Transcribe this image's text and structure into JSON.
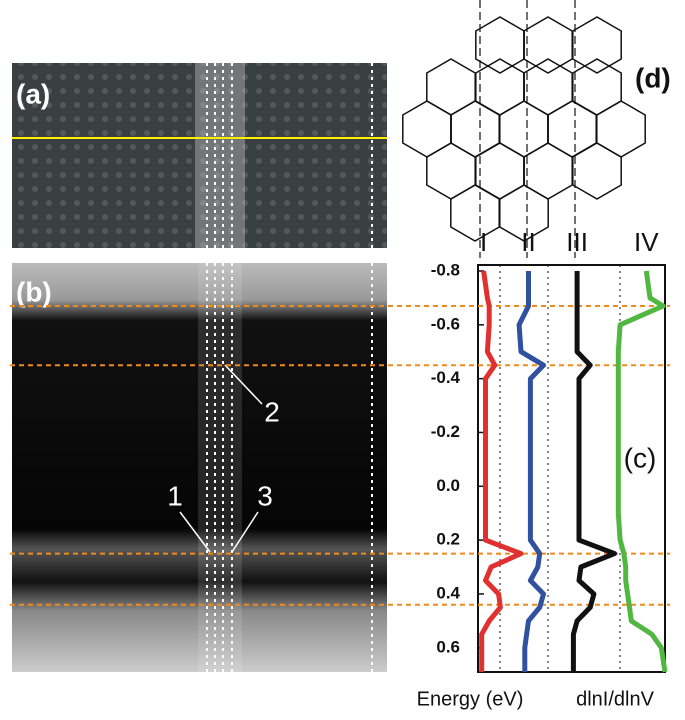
{
  "panels": {
    "a": "(a)",
    "b": "(b)",
    "c": "(c)",
    "d": "(d)"
  },
  "annotations": [
    "1",
    "2",
    "3"
  ],
  "chart_data": {
    "type": "line",
    "xlabel": "Energy (eV)",
    "ylabel": "dlnI/dlnV",
    "x": [
      -0.8,
      -0.7,
      -0.67,
      -0.6,
      -0.5,
      -0.45,
      -0.4,
      -0.3,
      -0.2,
      -0.1,
      0,
      0.1,
      0.2,
      0.25,
      0.3,
      0.35,
      0.4,
      0.45,
      0.5,
      0.55,
      0.6,
      0.69
    ],
    "xlim": [
      -0.8,
      0.69
    ],
    "xticks": [
      -0.8,
      -0.6,
      -0.4,
      -0.2,
      {
        "value": 0,
        "label": "0.0"
      },
      0.2,
      0.4,
      0.6
    ],
    "ylim": [
      0,
      10
    ],
    "reference_lines": [
      -0.67,
      -0.45,
      0.25,
      0.44
    ],
    "series": [
      {
        "name": "I",
        "color": "#e03030",
        "values": [
          0.3,
          0.5,
          0.6,
          0.6,
          0.5,
          0.9,
          0.4,
          0.4,
          0.4,
          0.4,
          0.4,
          0.4,
          0.4,
          2.3,
          0.7,
          0.4,
          1.1,
          1.2,
          0.6,
          0.2,
          0.2,
          0.2
        ]
      },
      {
        "name": "II",
        "color": "#3050a0",
        "values": [
          2.7,
          2.7,
          2.7,
          2.2,
          2.3,
          3.5,
          2.8,
          2.8,
          2.8,
          2.8,
          2.8,
          2.8,
          2.8,
          3.3,
          3.2,
          2.8,
          3.5,
          3.3,
          2.7,
          2.6,
          2.5,
          2.5
        ]
      },
      {
        "name": "III",
        "color": "#111111",
        "values": [
          5.3,
          5.3,
          5.3,
          5.3,
          5.3,
          6.0,
          5.4,
          5.4,
          5.4,
          5.4,
          5.4,
          5.4,
          5.4,
          7.3,
          5.5,
          5.4,
          6.2,
          6.0,
          5.3,
          5.1,
          5.1,
          5.1
        ]
      },
      {
        "name": "IV",
        "color": "#50b840",
        "values": [
          9.0,
          9.2,
          9.9,
          7.6,
          7.5,
          7.5,
          7.5,
          7.5,
          7.5,
          7.5,
          7.5,
          7.5,
          7.6,
          7.8,
          7.9,
          7.9,
          8.0,
          8.1,
          8.2,
          9.3,
          9.8,
          10
        ]
      }
    ]
  }
}
